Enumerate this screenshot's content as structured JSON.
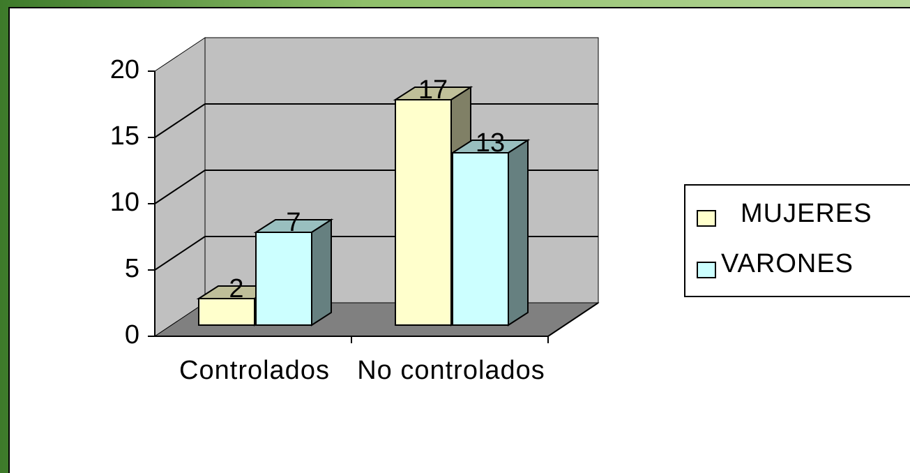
{
  "chart_data": {
    "type": "bar3d",
    "categories": [
      "Controlados",
      "No controlados"
    ],
    "series": [
      {
        "name": "MUJERES",
        "color": "#ffffcc",
        "values": [
          2,
          17
        ]
      },
      {
        "name": "VARONES",
        "color": "#ccffff",
        "values": [
          7,
          13
        ]
      }
    ],
    "ylim": [
      0,
      20
    ],
    "yticks": [
      0,
      5,
      10,
      15,
      20
    ],
    "grid": true,
    "legend": "right"
  }
}
